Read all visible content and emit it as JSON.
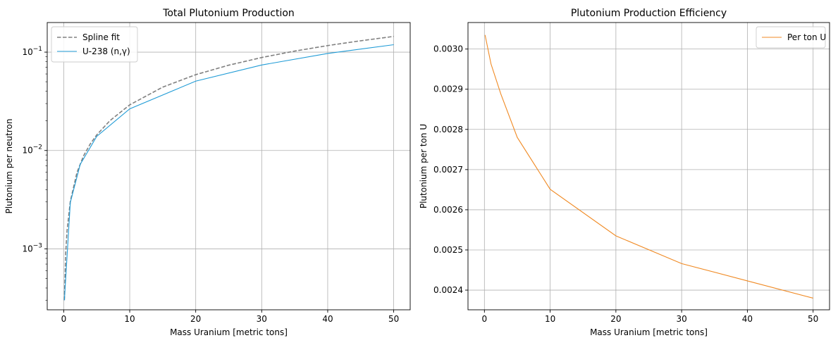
{
  "chart_data": [
    {
      "type": "line",
      "title": "Total Plutonium Production",
      "xlabel": "Mass Uranium [metric tons]",
      "ylabel": "Plutonium per neutron",
      "xlim": [
        -2.5,
        52.5
      ],
      "ylim": [
        0.00024,
        0.2
      ],
      "yscale": "log",
      "grid": true,
      "legend": "top-left",
      "xticks": [
        0,
        10,
        20,
        30,
        40,
        50
      ],
      "yticks": [
        0.001,
        0.01,
        0.1
      ],
      "series": [
        {
          "name": "Spline fit",
          "color": "#808080",
          "style": "dashed",
          "x": [
            0.1,
            0.3,
            0.5,
            1,
            2,
            3,
            4,
            5,
            7,
            10,
            15,
            20,
            25,
            30,
            35,
            40,
            45,
            50
          ],
          "y": [
            0.0003,
            0.00091,
            0.00152,
            0.00304,
            0.00595,
            0.0088,
            0.0116,
            0.0144,
            0.0201,
            0.0291,
            0.0441,
            0.059,
            0.0737,
            0.0882,
            0.1025,
            0.1166,
            0.1305,
            0.1445
          ]
        },
        {
          "name": "U-238 (n,γ)",
          "color": "#1f9bd6",
          "style": "solid",
          "x": [
            0.1,
            1,
            2.5,
            5,
            10,
            20,
            30,
            40,
            50
          ],
          "y": [
            0.0003,
            0.00296,
            0.00722,
            0.0139,
            0.0265,
            0.0507,
            0.074,
            0.0969,
            0.119
          ]
        }
      ]
    },
    {
      "type": "line",
      "title": "Plutonium Production Efficiency",
      "xlabel": "Mass Uranium [metric tons]",
      "ylabel": "Plutonium per ton U",
      "xlim": [
        -2.5,
        52.5
      ],
      "ylim": [
        0.002351,
        0.003066
      ],
      "yscale": "linear",
      "grid": true,
      "legend": "top-right",
      "xticks": [
        0,
        10,
        20,
        30,
        40,
        50
      ],
      "yticks": [
        0.0024,
        0.0025,
        0.0026,
        0.0027,
        0.0028,
        0.0029,
        0.003
      ],
      "series": [
        {
          "name": "Per ton U",
          "color": "#f08a24",
          "style": "solid",
          "x": [
            0.1,
            1,
            2.5,
            5,
            10,
            20,
            30,
            40,
            50
          ],
          "y": [
            0.003035,
            0.002963,
            0.002888,
            0.00278,
            0.002651,
            0.002535,
            0.002466,
            0.002423,
            0.00238
          ]
        }
      ]
    }
  ]
}
